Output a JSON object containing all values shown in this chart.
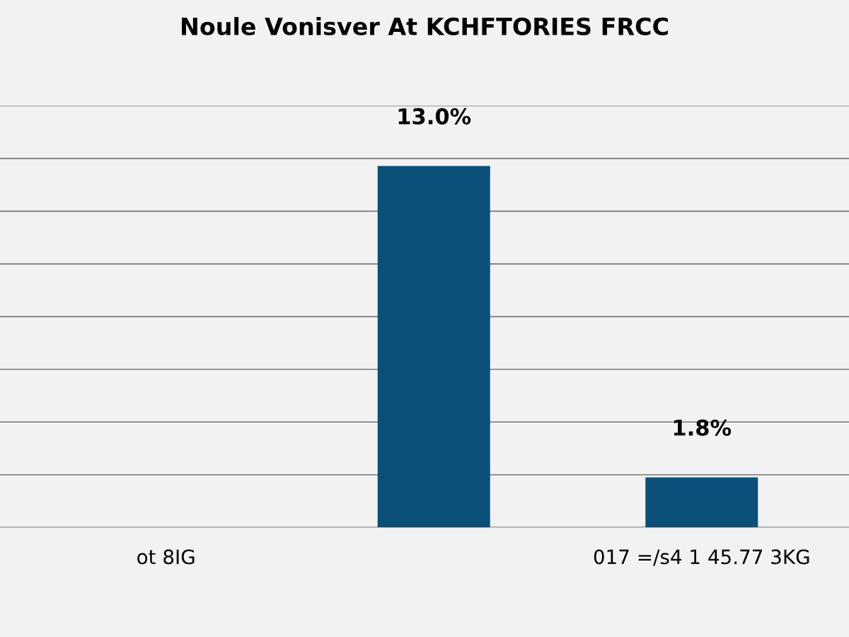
{
  "chart_data": {
    "type": "bar",
    "title": "Noule Vonisver At KCHFTORIES FRCC",
    "categories": [
      "ot 8IG",
      null,
      "017 =/s4 1 45.77 3KG"
    ],
    "values": [
      null,
      13.0,
      1.8
    ],
    "value_labels": [
      null,
      "13.0%",
      "1.8%"
    ],
    "color": "#0b5079",
    "grid": "y"
  }
}
